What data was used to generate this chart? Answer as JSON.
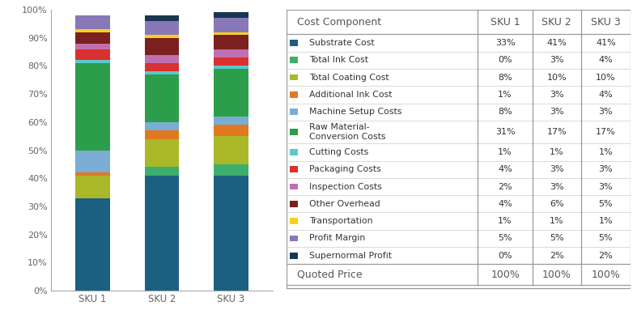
{
  "categories": [
    "SKU 1",
    "SKU 2",
    "SKU 3"
  ],
  "components": [
    {
      "name": "Substrate Cost",
      "color": "#1b6080",
      "values": [
        33,
        41,
        41
      ]
    },
    {
      "name": "Total Ink Cost",
      "color": "#3dae6e",
      "values": [
        0,
        3,
        4
      ]
    },
    {
      "name": "Total Coating Cost",
      "color": "#aab828",
      "values": [
        8,
        10,
        10
      ]
    },
    {
      "name": "Additional Ink Cost",
      "color": "#e07820",
      "values": [
        1,
        3,
        4
      ]
    },
    {
      "name": "Machine Setup Costs",
      "color": "#7badd4",
      "values": [
        8,
        3,
        3
      ]
    },
    {
      "name": "Raw Material-\nConversion Costs",
      "color": "#2c9e4b",
      "values": [
        31,
        17,
        17
      ]
    },
    {
      "name": "Cutting Costs",
      "color": "#5bc8c8",
      "values": [
        1,
        1,
        1
      ]
    },
    {
      "name": "Packaging Costs",
      "color": "#d93030",
      "values": [
        4,
        3,
        3
      ]
    },
    {
      "name": "Inspection Costs",
      "color": "#c070b0",
      "values": [
        2,
        3,
        3
      ]
    },
    {
      "name": "Other Overhead",
      "color": "#7c1f1f",
      "values": [
        4,
        6,
        5
      ]
    },
    {
      "name": "Transportation",
      "color": "#f5d020",
      "values": [
        1,
        1,
        1
      ]
    },
    {
      "name": "Profit Margin",
      "color": "#8878b8",
      "values": [
        5,
        5,
        5
      ]
    },
    {
      "name": "Supernormal Profit",
      "color": "#1a3650",
      "values": [
        0,
        2,
        2
      ]
    }
  ],
  "table_header": [
    "Cost Component",
    "SKU 1",
    "SKU 2",
    "SKU 3"
  ],
  "table_footer": [
    "Quoted Price",
    "100%",
    "100%",
    "100%"
  ],
  "bar_width": 0.5,
  "ylabel_ticks": [
    "0%",
    "10%",
    "20%",
    "30%",
    "40%",
    "50%",
    "60%",
    "70%",
    "80%",
    "90%",
    "100%"
  ],
  "ytick_vals": [
    0,
    10,
    20,
    30,
    40,
    50,
    60,
    70,
    80,
    90,
    100
  ],
  "background": "#ffffff",
  "axis_color": "#aaaaaa",
  "tick_color": "#666666",
  "table_line_color": "#999999",
  "table_content_line_color": "#cccccc",
  "table_text_color": "#555555",
  "table_value_color": "#333333",
  "header_fontsize": 9.0,
  "content_fontsize": 7.8,
  "footer_fontsize": 9.0,
  "value_fontsize": 8.0
}
